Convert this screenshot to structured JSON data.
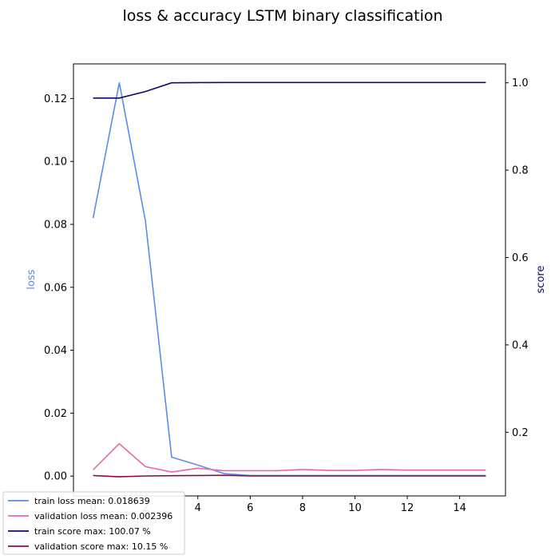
{
  "chart_data": {
    "type": "line",
    "title": "loss & accuracy LSTM binary classification",
    "xlabel": "",
    "ylabel_left": "loss",
    "ylabel_right": "score",
    "xlim": [
      -0.75,
      15.75
    ],
    "ylim_left": [
      -0.0063,
      0.131
    ],
    "ylim_right": [
      0.0543,
      1.0433
    ],
    "x_ticks": [
      0,
      2,
      4,
      6,
      8,
      10,
      12,
      14
    ],
    "y_left_ticks": [
      0.0,
      0.02,
      0.04,
      0.06,
      0.08,
      0.1,
      0.12
    ],
    "y_left_tick_labels": [
      "0.00",
      "0.02",
      "0.04",
      "0.06",
      "0.08",
      "0.10",
      "0.12"
    ],
    "y_right_ticks": [
      0.2,
      0.4,
      0.6,
      0.8,
      1.0
    ],
    "y_right_tick_labels": [
      "0.2",
      "0.4",
      "0.6",
      "0.8",
      "1.0"
    ],
    "grid": false,
    "legend_position": "bottom-left",
    "x": [
      0,
      1,
      2,
      3,
      4,
      5,
      6,
      7,
      8,
      9,
      10,
      11,
      12,
      13,
      14,
      15
    ],
    "series": [
      {
        "name": "train loss mean: 0.018639",
        "axis": "left",
        "color": "#5b8ce6",
        "values": [
          0.082,
          0.125,
          0.081,
          0.006,
          0.0035,
          0.0008,
          0.0002,
          0.0002,
          0.0002,
          0.0002,
          0.0002,
          0.0002,
          0.0002,
          0.0002,
          0.0002,
          0.0002
        ]
      },
      {
        "name": "validation loss mean: 0.002396",
        "axis": "left",
        "color": "#e868a8",
        "values": [
          0.002,
          0.0103,
          0.003,
          0.0013,
          0.0025,
          0.0017,
          0.0017,
          0.0017,
          0.0021,
          0.0018,
          0.0018,
          0.0021,
          0.0019,
          0.0019,
          0.0019,
          0.0019
        ]
      },
      {
        "name": "train score max: 100.07 %",
        "axis": "right",
        "color": "#0b0b6b",
        "values": [
          0.965,
          0.965,
          0.98,
          1.0,
          1.0005,
          1.0007,
          1.0007,
          1.0007,
          1.0007,
          1.0007,
          1.0007,
          1.0007,
          1.0007,
          1.0007,
          1.0007,
          1.0007
        ]
      },
      {
        "name": "validation score max: 10.15 %",
        "axis": "right",
        "color": "#8b0a50",
        "values": [
          0.101,
          0.098,
          0.1,
          0.1005,
          0.101,
          0.1015,
          0.1,
          0.1,
          0.1,
          0.1,
          0.1,
          0.1,
          0.1,
          0.1,
          0.1,
          0.1
        ]
      }
    ],
    "colors": {
      "left_axis_label": "#5b8ce6",
      "right_axis_label": "#0b0b6b"
    }
  }
}
